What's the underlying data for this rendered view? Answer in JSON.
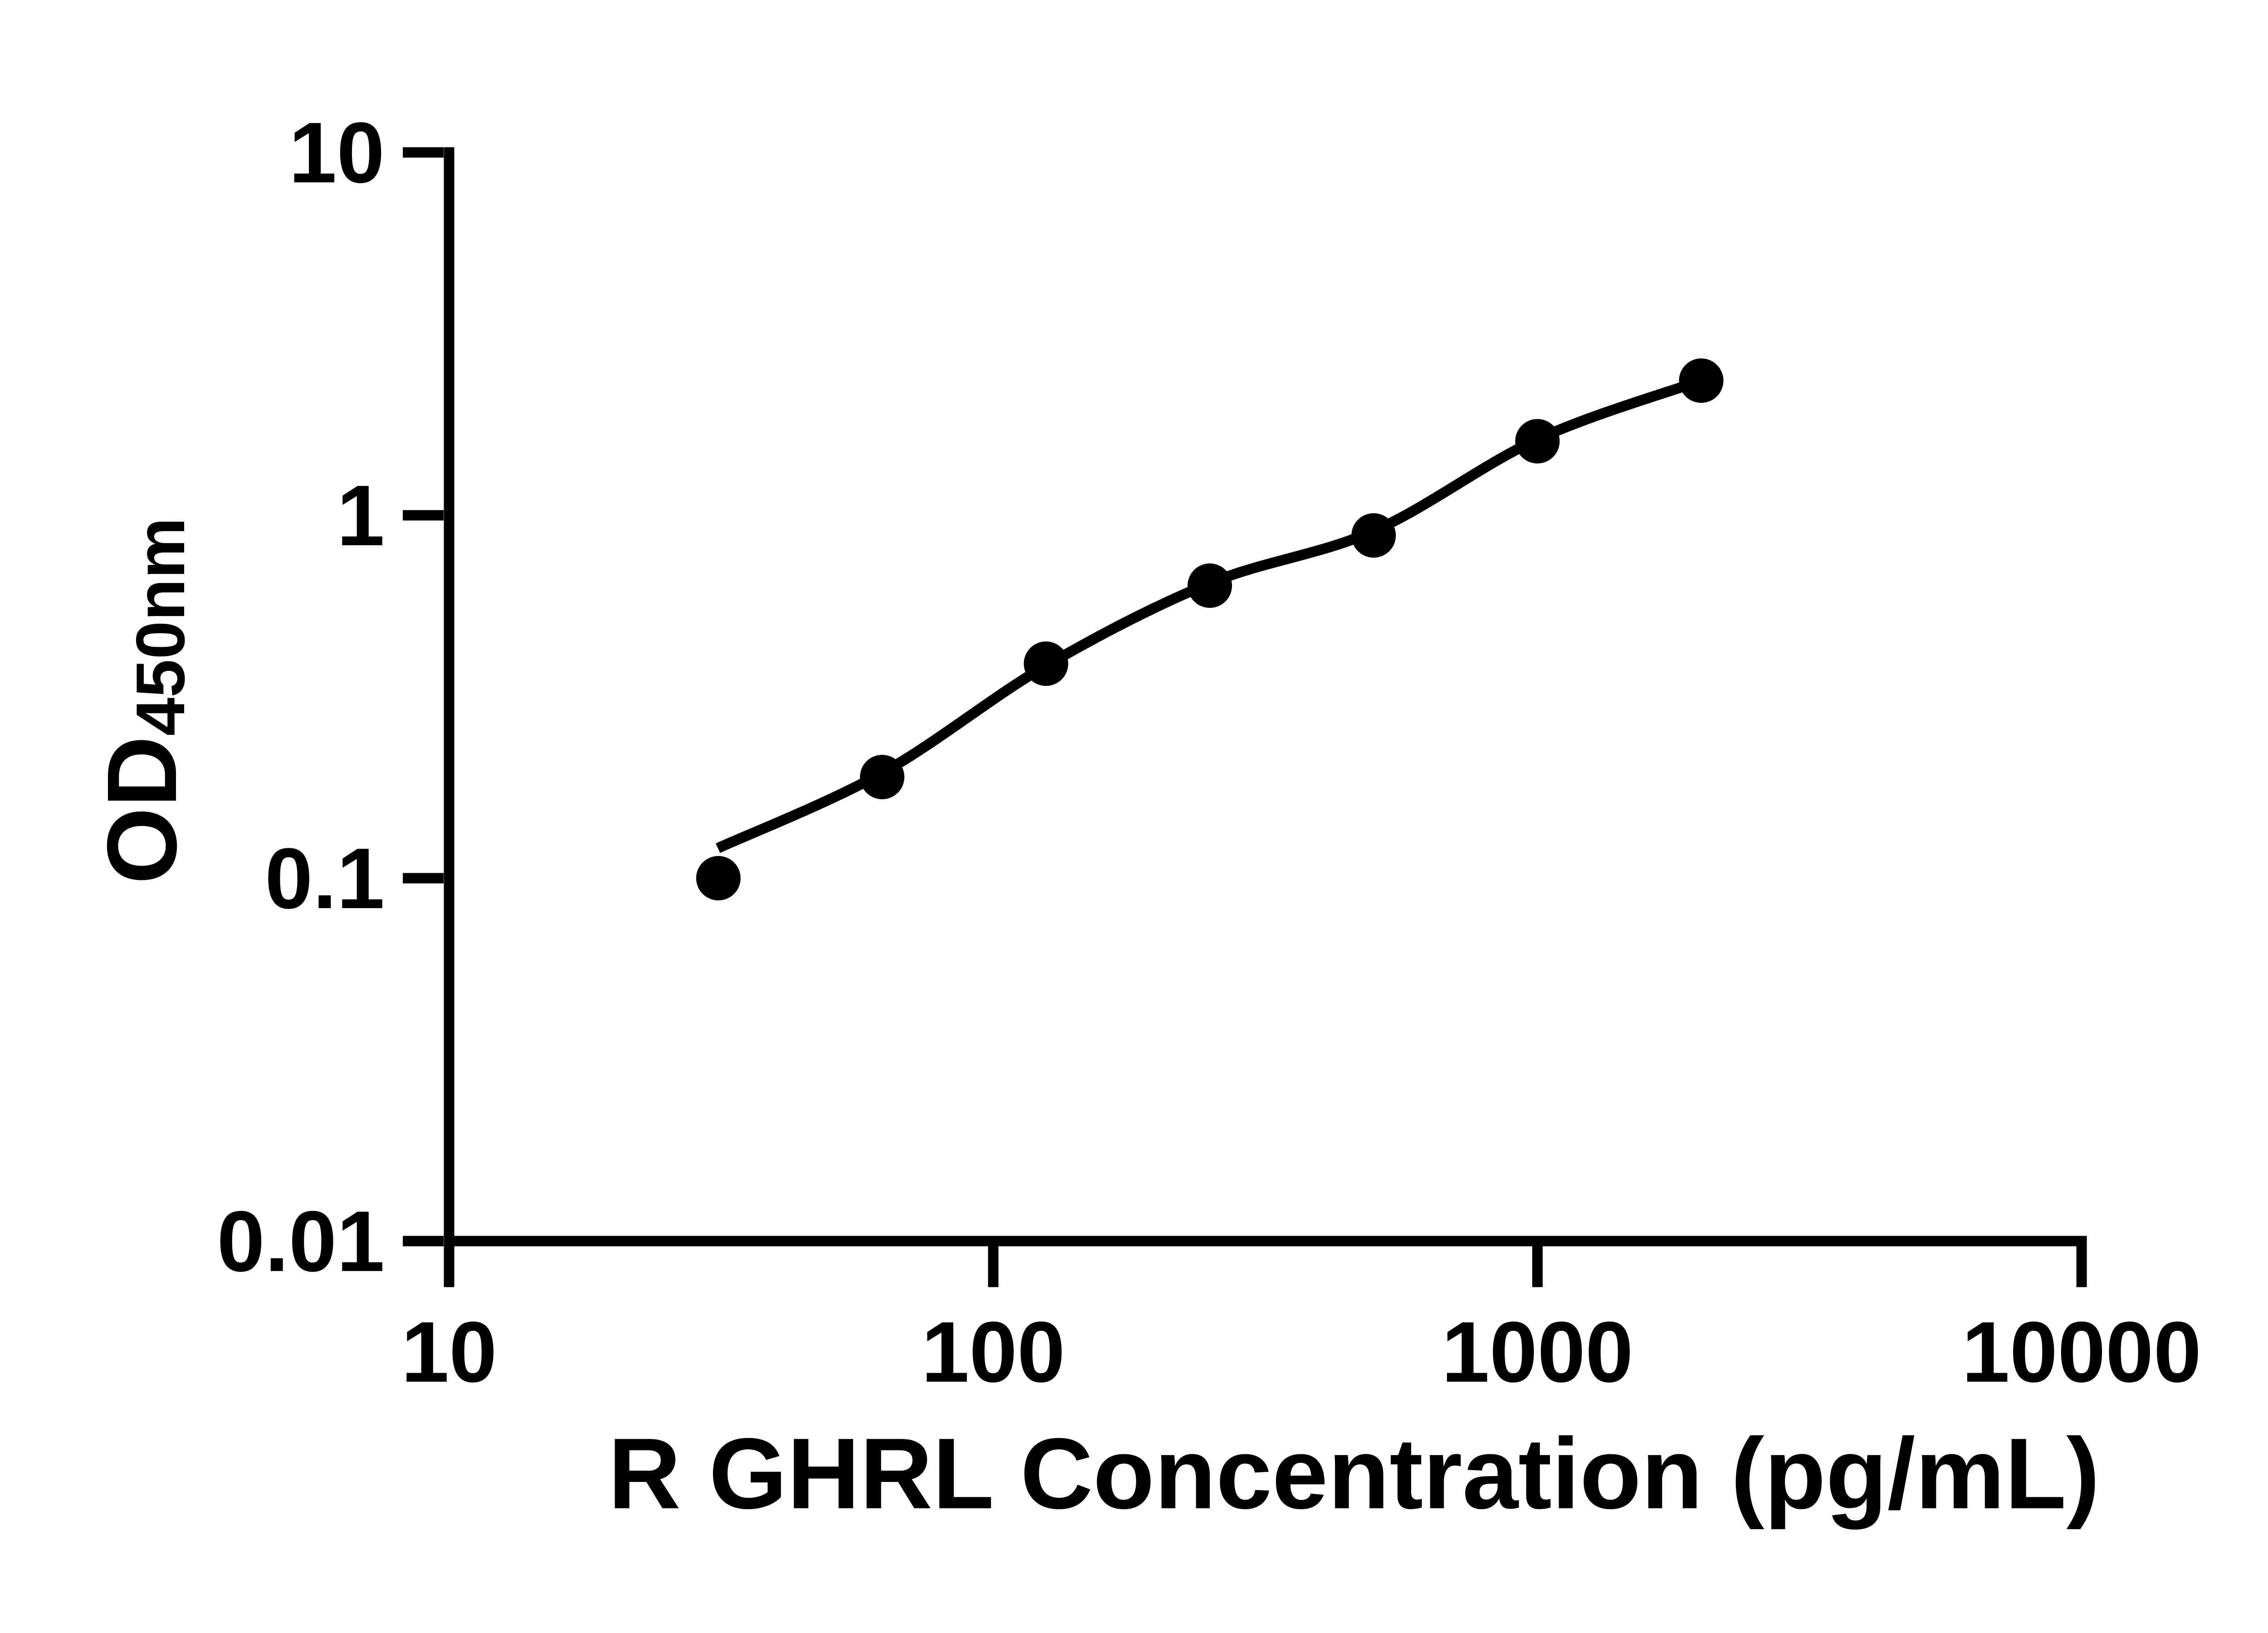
{
  "figure": {
    "background_color": "#ffffff",
    "ink_color": "#000000"
  },
  "chart_data": {
    "type": "scatter",
    "title": "",
    "xlabel": "R GHRL Concentration (pg/mL)",
    "ylabel_main": "OD",
    "ylabel_subscript": "450nm",
    "x_scale": "log",
    "y_scale": "log",
    "xlim": [
      10,
      10000
    ],
    "ylim": [
      0.01,
      10
    ],
    "x_ticks": [
      10,
      100,
      1000,
      10000
    ],
    "x_tick_labels": [
      "10",
      "100",
      "1000",
      "10000"
    ],
    "y_ticks": [
      10,
      1,
      0.1,
      0.01
    ],
    "y_tick_labels": [
      "10",
      "1",
      "0.1",
      "0.01"
    ],
    "grid": false,
    "legend": null,
    "series": [
      {
        "name": "standard-points",
        "marker": "filled-circle",
        "color": "#000000",
        "x": [
          31.25,
          62.5,
          125,
          250,
          500,
          1000,
          2000
        ],
        "y": [
          0.1,
          0.19,
          0.39,
          0.64,
          0.88,
          1.6,
          2.35
        ]
      }
    ],
    "fit_line": {
      "name": "fitted-standard-curve",
      "color": "#000000",
      "x": [
        31.25,
        62.5,
        125,
        250,
        500,
        1000,
        2000
      ],
      "y": [
        0.121,
        0.195,
        0.385,
        0.65,
        0.905,
        1.62,
        2.35
      ]
    }
  }
}
